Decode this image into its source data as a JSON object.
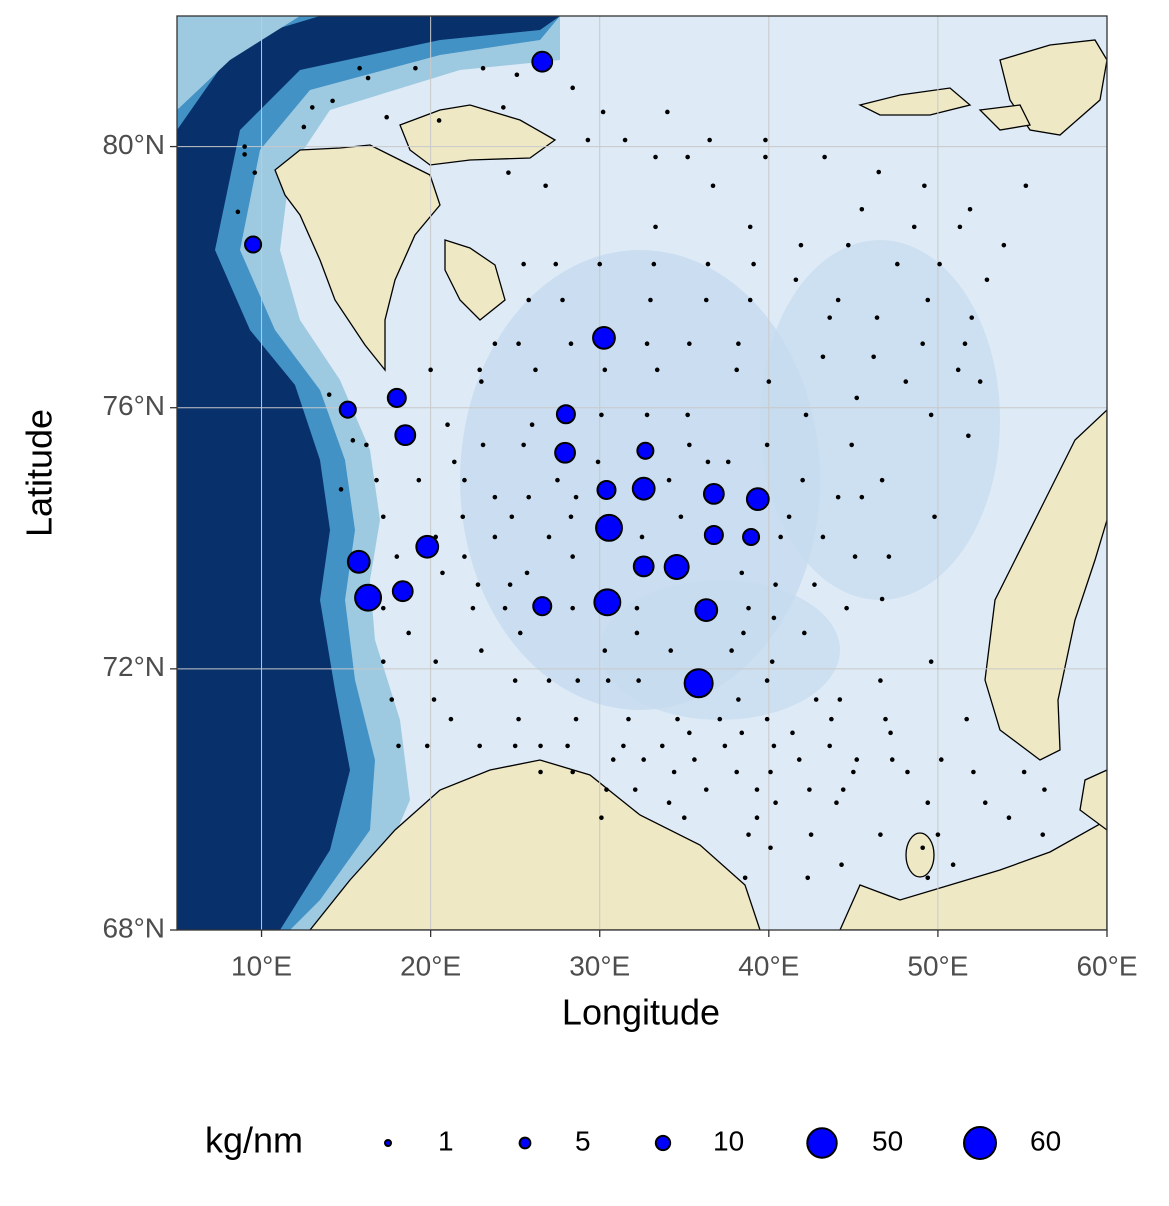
{
  "chart_data": {
    "type": "scatter",
    "xlabel": "Longitude",
    "ylabel": "Latitude",
    "xlim": [
      5,
      60
    ],
    "ylim": [
      68,
      82
    ],
    "xticks": [
      {
        "value": 10,
        "label": "10°E"
      },
      {
        "value": 20,
        "label": "20°E"
      },
      {
        "value": 30,
        "label": "30°E"
      },
      {
        "value": 40,
        "label": "40°E"
      },
      {
        "value": 50,
        "label": "50°E"
      },
      {
        "value": 60,
        "label": "60°E"
      }
    ],
    "yticks": [
      {
        "value": 68,
        "label": "68°N"
      },
      {
        "value": 72,
        "label": "72°N"
      },
      {
        "value": 76,
        "label": "76°N"
      },
      {
        "value": 80,
        "label": "80°N"
      }
    ],
    "grid": true,
    "series": [
      {
        "color": "#000000",
        "x": [
          30.2,
          34.0,
          29.3,
          31.5,
          36.5,
          39.8,
          33.3,
          35.2,
          39.8,
          43.3,
          46.5,
          26.8,
          36.7,
          49.2,
          55.2,
          45.5,
          51.9,
          33.3,
          38.9,
          48.6,
          51.3,
          41.9,
          44.7,
          53.9,
          25.5,
          27.4,
          30.0,
          33.2,
          36.4,
          39.1,
          47.6,
          50.1,
          41.6,
          52.9,
          25.8,
          27.8,
          33.0,
          36.3,
          38.9,
          44.1,
          49.4,
          43.6,
          46.4,
          52.0,
          23.8,
          25.2,
          28.3,
          32.8,
          35.3,
          38.2,
          49.1,
          51.6,
          43.2,
          46.2,
          20.0,
          22.9,
          26.2,
          30.3,
          33.4,
          38.1,
          51.2,
          23.0,
          40.0,
          48.1,
          52.5,
          45.2,
          30.1,
          32.8,
          35.2,
          42.2,
          49.6,
          21.0,
          26.0,
          51.8,
          16.2,
          23.1,
          25.5,
          35.3,
          39.9,
          44.9,
          21.4,
          29.9,
          36.4,
          37.6,
          16.8,
          19.3,
          22.0,
          27.5,
          34.1,
          42.0,
          46.7,
          23.8,
          25.8,
          28.6,
          44.1,
          45.5,
          17.2,
          21.9,
          24.8,
          28.3,
          34.8,
          41.2,
          49.8,
          20.3,
          23.8,
          27.0,
          32.5,
          40.7,
          43.2,
          18.0,
          22.0,
          28.4,
          45.1,
          47.1,
          20.7,
          25.7,
          38.4,
          22.8,
          24.7,
          40.4,
          42.7,
          46.7,
          17.2,
          22.5,
          24.4,
          28.4,
          32.2,
          38.8,
          44.6,
          40.3,
          18.7,
          25.3,
          32.2,
          38.5,
          42.1,
          23.0,
          30.3,
          34.2,
          37.8,
          17.2,
          20.3,
          40.2,
          49.6,
          25.0,
          27.0,
          28.7,
          30.5,
          32.3,
          39.9,
          46.6,
          17.7,
          20.2,
          38.2,
          42.8,
          44.2,
          21.2,
          25.2,
          28.6,
          31.7,
          34.6,
          37.1,
          39.9,
          43.7,
          46.9,
          51.7,
          35.3,
          38.4,
          41.4,
          47.2,
          18.1,
          19.8,
          22.9,
          25.0,
          26.5,
          28.1,
          31.4,
          33.7,
          37.4,
          40.3,
          43.6,
          30.8,
          32.6,
          35.6,
          41.8,
          45.2,
          47.3,
          50.2,
          26.5,
          28.4,
          34.4,
          38.1,
          40.1,
          45.0,
          48.2,
          52.1,
          55.1,
          30.4,
          32.1,
          36.3,
          39.3,
          42.4,
          44.4,
          56.3,
          34.1,
          40.4,
          44.0,
          49.4,
          52.8,
          30.1,
          35.0,
          39.3,
          54.2,
          38.8,
          42.5,
          46.6,
          50.0,
          56.2,
          40.1,
          49.1,
          44.3,
          50.9,
          38.6,
          42.3,
          49.4,
          9.0,
          9.0,
          9.6,
          8.6,
          12.5,
          13.0,
          15.8,
          16.3,
          19.1,
          23.1,
          25.1,
          14.2,
          17.4,
          20.5,
          24.3,
          28.4,
          24.6,
          14.0,
          15.4,
          14.7
        ],
        "y": [
          80.53,
          80.53,
          80.1,
          80.1,
          80.1,
          80.1,
          79.84,
          79.84,
          79.84,
          79.84,
          79.61,
          79.4,
          79.4,
          79.4,
          79.4,
          79.04,
          79.04,
          78.77,
          78.77,
          78.77,
          78.77,
          78.49,
          78.49,
          78.49,
          78.2,
          78.2,
          78.2,
          78.2,
          78.2,
          78.2,
          78.2,
          78.2,
          77.96,
          77.96,
          77.65,
          77.65,
          77.65,
          77.65,
          77.65,
          77.65,
          77.65,
          77.38,
          77.38,
          77.38,
          76.98,
          76.98,
          76.98,
          76.98,
          76.98,
          76.98,
          76.98,
          76.98,
          76.78,
          76.78,
          76.58,
          76.58,
          76.58,
          76.58,
          76.58,
          76.58,
          76.58,
          76.4,
          76.4,
          76.4,
          76.4,
          76.15,
          75.89,
          75.89,
          75.89,
          75.89,
          75.89,
          75.74,
          75.74,
          75.57,
          75.43,
          75.43,
          75.43,
          75.43,
          75.43,
          75.43,
          75.17,
          75.17,
          75.17,
          75.17,
          74.89,
          74.89,
          74.89,
          74.89,
          74.89,
          74.89,
          74.89,
          74.63,
          74.63,
          74.63,
          74.63,
          74.63,
          74.33,
          74.33,
          74.33,
          74.33,
          74.33,
          74.33,
          74.33,
          74.02,
          74.02,
          74.02,
          74.02,
          74.02,
          74.02,
          73.72,
          73.72,
          73.72,
          73.72,
          73.72,
          73.47,
          73.47,
          73.47,
          73.29,
          73.29,
          73.29,
          73.29,
          73.07,
          72.93,
          72.93,
          72.93,
          72.93,
          72.93,
          72.93,
          72.93,
          72.78,
          72.55,
          72.55,
          72.55,
          72.55,
          72.55,
          72.28,
          72.28,
          72.28,
          72.28,
          72.11,
          72.11,
          72.11,
          72.11,
          71.82,
          71.82,
          71.82,
          71.82,
          71.82,
          71.82,
          71.82,
          71.53,
          71.53,
          71.53,
          71.53,
          71.53,
          71.23,
          71.23,
          71.23,
          71.23,
          71.23,
          71.23,
          71.23,
          71.23,
          71.23,
          71.23,
          71.02,
          71.02,
          71.02,
          71.02,
          70.82,
          70.82,
          70.82,
          70.82,
          70.82,
          70.82,
          70.82,
          70.82,
          70.82,
          70.82,
          70.82,
          70.61,
          70.61,
          70.61,
          70.61,
          70.61,
          70.61,
          70.61,
          70.42,
          70.42,
          70.42,
          70.42,
          70.42,
          70.42,
          70.42,
          70.42,
          70.42,
          70.15,
          70.15,
          70.15,
          70.15,
          70.15,
          70.15,
          70.15,
          69.95,
          69.95,
          69.95,
          69.95,
          69.95,
          69.72,
          69.72,
          69.72,
          69.72,
          69.46,
          69.46,
          69.46,
          69.46,
          69.46,
          69.26,
          69.26,
          69.0,
          69.0,
          68.8,
          68.8,
          68.8,
          80.0,
          79.88,
          79.6,
          79.0,
          80.3,
          80.6,
          81.2,
          81.05,
          81.2,
          81.2,
          81.1,
          80.7,
          80.45,
          80.4,
          80.6,
          80.9,
          79.6,
          76.2,
          75.5,
          74.75
        ]
      },
      {
        "color": "#0000ff",
        "x": [
          26.6,
          9.5,
          30.25,
          15.1,
          18.0,
          18.5,
          28.0,
          27.95,
          32.7,
          30.4,
          32.6,
          36.75,
          39.35,
          30.55,
          36.75,
          38.95,
          15.75,
          19.8,
          32.6,
          34.55,
          16.3,
          18.35,
          26.6,
          30.45,
          36.3,
          35.85
        ],
        "y": [
          81.3,
          78.5,
          77.07,
          75.97,
          76.15,
          75.58,
          75.9,
          75.31,
          75.34,
          74.74,
          74.76,
          74.68,
          74.6,
          74.16,
          74.05,
          74.02,
          73.64,
          73.87,
          73.57,
          73.56,
          73.09,
          73.19,
          72.96,
          73.02,
          72.9,
          71.78
        ],
        "values": [
          21,
          13,
          26,
          13,
          17,
          21,
          17,
          21,
          13,
          17,
          26,
          21,
          26,
          38,
          17,
          13,
          26,
          26,
          21,
          32,
          38,
          21,
          17,
          38,
          26,
          45
        ]
      }
    ],
    "size_legend": {
      "title": "kg/nm",
      "values": [
        1,
        5,
        10,
        50,
        60
      ]
    }
  }
}
